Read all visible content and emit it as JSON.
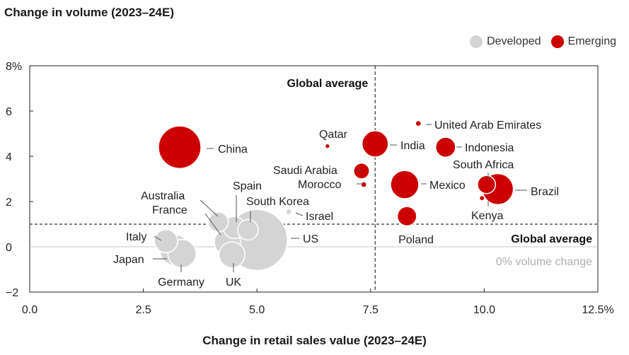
{
  "chart_data": {
    "type": "scatter",
    "title": "Change in volume (2023–24E)",
    "xlabel": "Change in retail sales value (2023–24E)",
    "ylabel": "",
    "xlim": [
      0,
      12.5
    ],
    "ylim": [
      -2,
      8
    ],
    "x_ticks": [
      "0.0",
      "2.5",
      "5.0",
      "7.5",
      "10.0",
      "12.5%"
    ],
    "y_ticks": [
      "−2",
      "0",
      "2",
      "4",
      "6",
      "8%"
    ],
    "legend": [
      {
        "name": "Developed",
        "color": "#d4d4d4"
      },
      {
        "name": "Emerging",
        "color": "#cc0000"
      }
    ],
    "reference_lines": {
      "vertical": {
        "x": 7.6,
        "label": "Global average"
      },
      "horizontal": {
        "y": 1.0,
        "label": "Global average"
      },
      "zero": {
        "y": 0,
        "label": "0% volume change"
      }
    },
    "points": [
      {
        "label": "China",
        "group": "Emerging",
        "x": 3.3,
        "y": 4.4,
        "size": 8
      },
      {
        "label": "Qatar",
        "group": "Emerging",
        "x": 6.55,
        "y": 4.45,
        "size": 0.15
      },
      {
        "label": "India",
        "group": "Emerging",
        "x": 7.6,
        "y": 4.55,
        "size": 2.5
      },
      {
        "label": "Saudi Arabia",
        "group": "Emerging",
        "x": 7.3,
        "y": 3.35,
        "size": 0.6
      },
      {
        "label": "Morocco",
        "group": "Emerging",
        "x": 7.35,
        "y": 2.75,
        "size": 0.3
      },
      {
        "label": "United Arab Emirates",
        "group": "Emerging",
        "x": 8.55,
        "y": 5.45,
        "size": 0.3
      },
      {
        "label": "Indonesia",
        "group": "Emerging",
        "x": 9.15,
        "y": 4.4,
        "size": 1.2
      },
      {
        "label": "Mexico",
        "group": "Emerging",
        "x": 8.25,
        "y": 2.75,
        "size": 3
      },
      {
        "label": "South Africa",
        "group": "Emerging",
        "x": 10.05,
        "y": 2.75,
        "size": 0.9
      },
      {
        "label": "Brazil",
        "group": "Emerging",
        "x": 10.3,
        "y": 2.55,
        "size": 3.8
      },
      {
        "label": "Kenya",
        "group": "Emerging",
        "x": 9.95,
        "y": 2.15,
        "size": 0.2
      },
      {
        "label": "Poland",
        "group": "Emerging",
        "x": 8.3,
        "y": 1.35,
        "size": 1.1
      },
      {
        "label": "Australia",
        "group": "Developed",
        "x": 4.15,
        "y": 1.1,
        "size": 1.2
      },
      {
        "label": "Spain",
        "group": "Developed",
        "x": 4.5,
        "y": 0.85,
        "size": 1.6
      },
      {
        "label": "South Korea",
        "group": "Developed",
        "x": 4.8,
        "y": 0.75,
        "size": 1.3
      },
      {
        "label": "Israel",
        "group": "Developed",
        "x": 5.7,
        "y": 1.55,
        "size": 0.3
      },
      {
        "label": "France",
        "group": "Developed",
        "x": 4.35,
        "y": 0.2,
        "size": 2.5
      },
      {
        "label": "US",
        "group": "Developed",
        "x": 5.0,
        "y": 0.3,
        "size": 18
      },
      {
        "label": "UK",
        "group": "Developed",
        "x": 4.45,
        "y": -0.35,
        "size": 2.4
      },
      {
        "label": "Italy",
        "group": "Developed",
        "x": 3.0,
        "y": 0.25,
        "size": 1.8
      },
      {
        "label": "Japan",
        "group": "Developed",
        "x": 3.2,
        "y": -0.15,
        "size": 3.6
      },
      {
        "label": "Germany",
        "group": "Developed",
        "x": 3.35,
        "y": -0.3,
        "size": 3.0
      }
    ]
  }
}
